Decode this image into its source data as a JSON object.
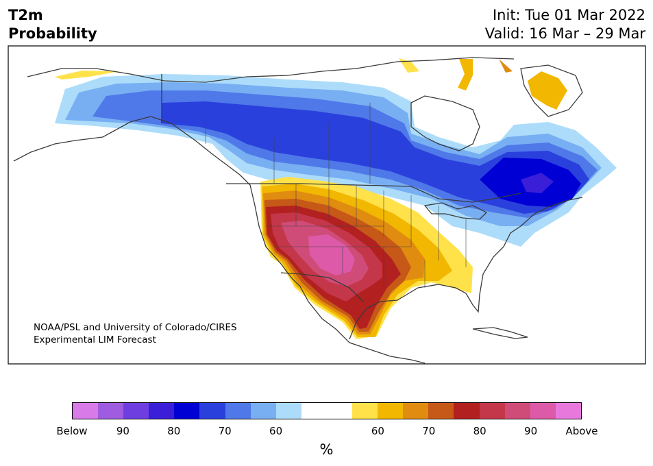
{
  "title": {
    "line1": "T2m",
    "line2": "Probability"
  },
  "init": "Init: Tue 01 Mar 2022",
  "valid": "Valid: 16 Mar – 29 Mar",
  "credit": {
    "line1": "NOAA/PSL and University of Colorado/CIRES",
    "line2": "Experimental LIM Forecast"
  },
  "colorbar": {
    "colors": [
      "#d87ae8",
      "#a05ce0",
      "#6e3ee0",
      "#3a1ed8",
      "#0000d4",
      "#2a40dc",
      "#4f78e8",
      "#78aef2",
      "#acdcfa",
      "#ffffff",
      "#ffffff",
      "#ffe24a",
      "#f2b700",
      "#e08c10",
      "#c65818",
      "#b22020",
      "#c4364a",
      "#d04c78",
      "#dc5aa8",
      "#e878dc"
    ],
    "tick_labels": [
      "Below",
      "90",
      "80",
      "70",
      "60",
      "",
      "60",
      "70",
      "80",
      "90",
      "Above"
    ],
    "unit": "%"
  }
}
